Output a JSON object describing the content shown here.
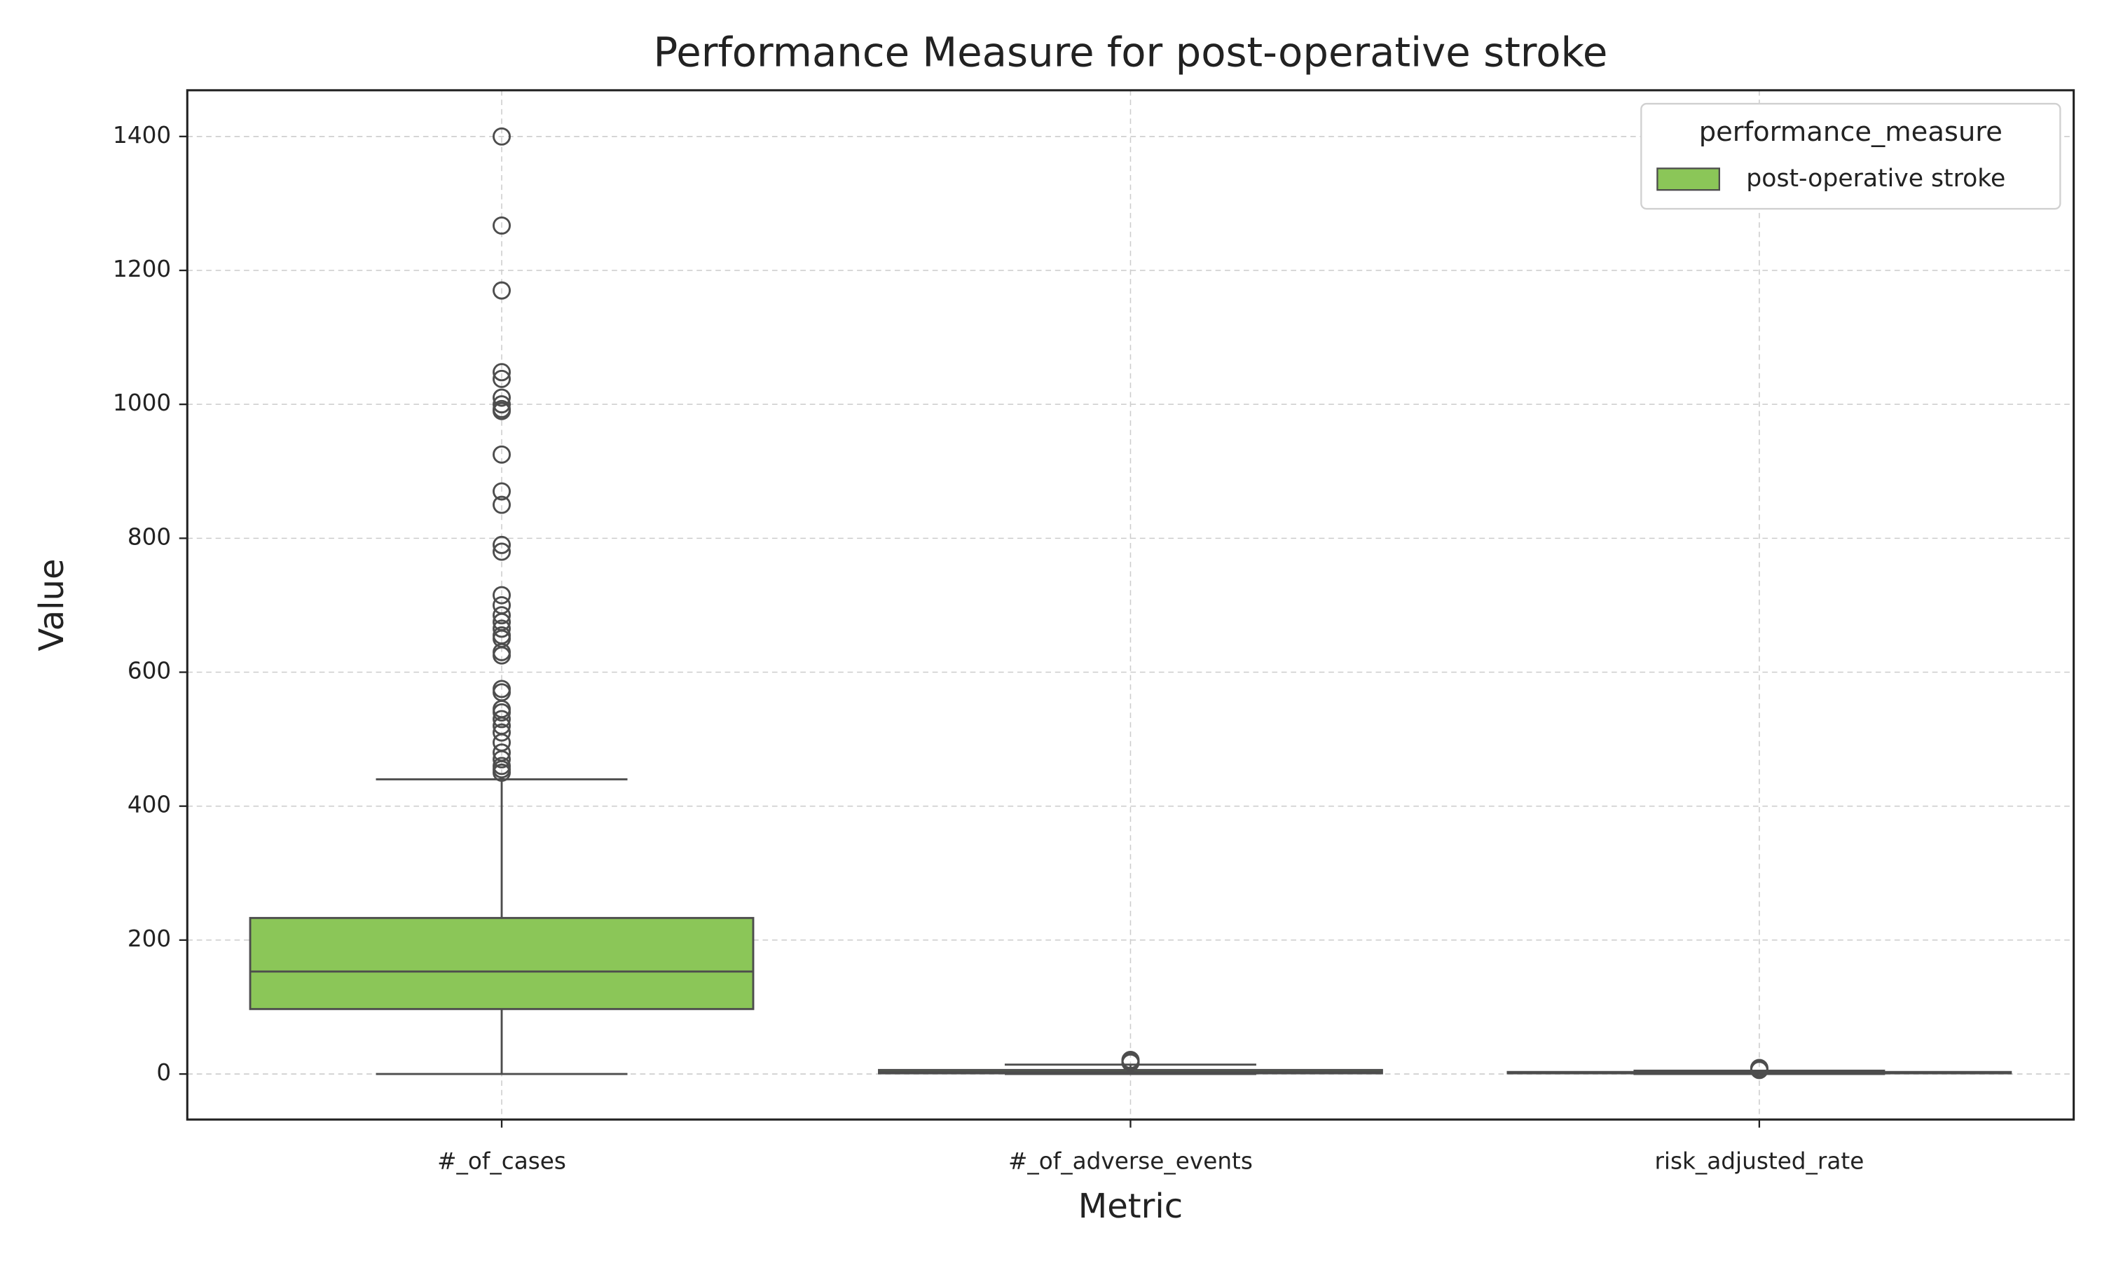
{
  "chart_data": {
    "type": "box",
    "title": "Performance Measure for post-operative stroke",
    "x_label": "Metric",
    "y_label": "Value",
    "categories": [
      "#_of_cases",
      "#_of_adverse_events",
      "risk_adjusted_rate"
    ],
    "legend_title": "performance_measure",
    "legend_position": "upper right",
    "grid": true,
    "ylim": [
      -68,
      1469
    ],
    "yticks": [
      0,
      200,
      400,
      600,
      800,
      1000,
      1200,
      1400
    ],
    "series": [
      {
        "name": "post-operative stroke",
        "color": "#8bc658",
        "boxes": [
          {
            "whislo": 0,
            "q1": 97,
            "med": 153,
            "q3": 233,
            "whishi": 440,
            "fliers": [
              1400,
              1267,
              1170,
              1048,
              1038,
              1010,
              1000,
              993,
              990,
              925,
              870,
              850,
              790,
              780,
              715,
              700,
              685,
              675,
              665,
              655,
              650,
              630,
              625,
              575,
              570,
              545,
              540,
              530,
              520,
              510,
              495,
              480,
              470,
              460,
              455,
              450
            ]
          },
          {
            "whislo": 0,
            "q1": 1,
            "med": 3,
            "q3": 6,
            "whishi": 14,
            "fliers": [
              17,
              19,
              21
            ]
          },
          {
            "whislo": 0,
            "q1": 1,
            "med": 2,
            "q3": 3,
            "whishi": 5,
            "fliers": [
              6,
              8,
              9
            ]
          }
        ]
      }
    ]
  }
}
